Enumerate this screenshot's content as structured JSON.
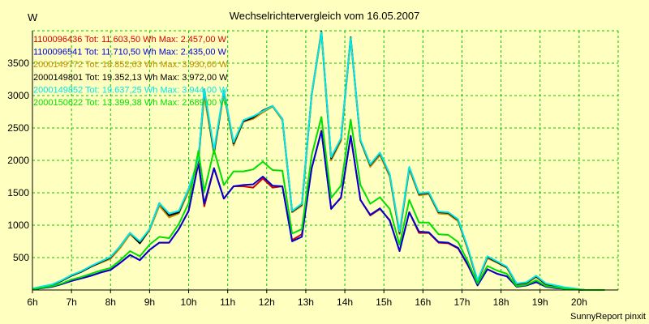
{
  "chart_data": {
    "type": "line",
    "title": "Wechselrichtervergleich vom 16.05.2007",
    "ylabel": "W",
    "xlabel": "",
    "footer": "SunnyReport pinxit",
    "ylim": [
      0,
      4000
    ],
    "yticks": [
      500,
      1000,
      1500,
      2000,
      2500,
      3000,
      3500
    ],
    "xlim": [
      6,
      21
    ],
    "xticks": [
      {
        "value": 6,
        "label": "6h"
      },
      {
        "value": 7,
        "label": "7h"
      },
      {
        "value": 8,
        "label": "8h"
      },
      {
        "value": 9,
        "label": "9h"
      },
      {
        "value": 10,
        "label": "10h"
      },
      {
        "value": 11,
        "label": "11h"
      },
      {
        "value": 12,
        "label": "12h"
      },
      {
        "value": 13,
        "label": "13h"
      },
      {
        "value": 14,
        "label": "14h"
      },
      {
        "value": 15,
        "label": "15h"
      },
      {
        "value": 16,
        "label": "16h"
      },
      {
        "value": 17,
        "label": "17h"
      },
      {
        "value": 18,
        "label": "18h"
      },
      {
        "value": 19,
        "label": "19h"
      },
      {
        "value": 20,
        "label": "20h"
      }
    ],
    "grid": true,
    "legend_position": "top-left",
    "colors": {
      "background": "#ffffc0",
      "grid": "#00c800",
      "axis": "#000000"
    },
    "x": [
      6.0,
      6.25,
      6.5,
      6.75,
      7.0,
      7.25,
      7.5,
      7.75,
      8.0,
      8.25,
      8.5,
      8.75,
      9.0,
      9.25,
      9.5,
      9.75,
      10.0,
      10.25,
      10.4,
      10.65,
      10.9,
      11.15,
      11.4,
      11.65,
      11.9,
      12.15,
      12.4,
      12.65,
      12.9,
      13.15,
      13.4,
      13.65,
      13.9,
      14.15,
      14.4,
      14.65,
      14.9,
      15.15,
      15.4,
      15.65,
      15.9,
      16.15,
      16.4,
      16.65,
      16.9,
      17.15,
      17.4,
      17.65,
      17.9,
      18.15,
      18.4,
      18.65,
      18.9,
      19.15,
      19.4,
      19.65,
      19.9,
      20.15,
      20.4,
      20.65
    ],
    "series": [
      {
        "name": "1100096436",
        "legend": "1100096436 Tot: 11.603,50 Wh Max: 2.457,00 W",
        "color": "#d40000",
        "values": [
          10,
          30,
          50,
          90,
          140,
          180,
          220,
          270,
          310,
          420,
          540,
          460,
          620,
          730,
          730,
          940,
          1220,
          1960,
          1290,
          1880,
          1410,
          1600,
          1600,
          1580,
          1720,
          1580,
          1600,
          770,
          860,
          1880,
          2460,
          1260,
          1420,
          2370,
          1390,
          1150,
          1250,
          1080,
          600,
          1200,
          880,
          880,
          730,
          720,
          640,
          380,
          80,
          320,
          250,
          210,
          50,
          70,
          130,
          50,
          30,
          20,
          10,
          0,
          0,
          0
        ]
      },
      {
        "name": "1100096541",
        "legend": "1100096541 Tot: 11.710,50 Wh Max: 2.435,00 W",
        "color": "#0000d4",
        "values": [
          10,
          30,
          50,
          90,
          140,
          180,
          220,
          270,
          310,
          420,
          540,
          460,
          620,
          730,
          730,
          940,
          1220,
          1960,
          1330,
          1880,
          1410,
          1600,
          1620,
          1630,
          1750,
          1610,
          1600,
          750,
          820,
          1880,
          2450,
          1250,
          1430,
          2380,
          1390,
          1160,
          1260,
          1070,
          600,
          1200,
          900,
          890,
          740,
          730,
          650,
          390,
          70,
          320,
          250,
          210,
          50,
          70,
          120,
          50,
          30,
          20,
          10,
          0,
          0,
          0
        ]
      },
      {
        "name": "2000149772",
        "legend": "2000149772 Tot: 18.852,63 Wh Max: 3.930,00 W",
        "color": "#c88c00",
        "values": [
          15,
          50,
          80,
          140,
          220,
          280,
          360,
          420,
          480,
          650,
          860,
          720,
          920,
          1300,
          1120,
          1180,
          1520,
          1980,
          3000,
          2100,
          3040,
          2230,
          2600,
          2640,
          2740,
          2830,
          2620,
          1200,
          1300,
          3000,
          3960,
          2000,
          2300,
          3870,
          2300,
          1900,
          2080,
          1750,
          860,
          1860,
          1460,
          1480,
          1180,
          1170,
          1060,
          620,
          130,
          490,
          420,
          340,
          80,
          100,
          200,
          80,
          60,
          30,
          10,
          0,
          0,
          0
        ]
      },
      {
        "name": "2000149801",
        "legend": "2000149801 Tot: 19.352,13 Wh Max: 3.972,00 W",
        "color": "#000000",
        "values": [
          15,
          50,
          80,
          140,
          220,
          280,
          360,
          430,
          500,
          680,
          880,
          720,
          940,
          1340,
          1150,
          1200,
          1560,
          2000,
          3100,
          2120,
          3080,
          2260,
          2600,
          2660,
          2770,
          2840,
          2640,
          1210,
          1320,
          3020,
          3990,
          2030,
          2330,
          3900,
          2310,
          1930,
          2110,
          1780,
          880,
          1890,
          1480,
          1500,
          1200,
          1190,
          1080,
          640,
          140,
          510,
          430,
          350,
          90,
          110,
          210,
          90,
          60,
          30,
          10,
          0,
          0,
          0
        ]
      },
      {
        "name": "2000149852",
        "legend": "2000149852 Tot: 19.637,25 Wh Max: 3.944,00 W",
        "color": "#00e8e8",
        "values": [
          20,
          55,
          85,
          150,
          230,
          290,
          370,
          440,
          510,
          680,
          880,
          750,
          940,
          1340,
          1180,
          1220,
          1560,
          2020,
          3100,
          2160,
          3080,
          2280,
          2620,
          2680,
          2760,
          2840,
          2640,
          1220,
          1330,
          3020,
          3980,
          2050,
          2340,
          3890,
          2320,
          1940,
          2120,
          1790,
          900,
          1900,
          1490,
          1510,
          1210,
          1200,
          1090,
          650,
          150,
          520,
          440,
          360,
          100,
          120,
          220,
          100,
          70,
          40,
          20,
          0,
          0,
          0
        ]
      },
      {
        "name": "2000150622",
        "legend": "2000150622 Tot: 13.399,38 Wh Max: 2.689,00 W",
        "color": "#00e000",
        "values": [
          10,
          35,
          60,
          100,
          160,
          200,
          250,
          300,
          340,
          460,
          600,
          520,
          700,
          820,
          800,
          1020,
          1340,
          2150,
          1520,
          2160,
          1620,
          1830,
          1830,
          1860,
          1980,
          1850,
          1840,
          870,
          940,
          2080,
          2670,
          1420,
          1610,
          2630,
          1620,
          1330,
          1430,
          1250,
          700,
          1390,
          1040,
          1040,
          860,
          850,
          740,
          440,
          100,
          370,
          300,
          250,
          60,
          80,
          150,
          60,
          40,
          20,
          10,
          0,
          0,
          0
        ]
      }
    ]
  }
}
